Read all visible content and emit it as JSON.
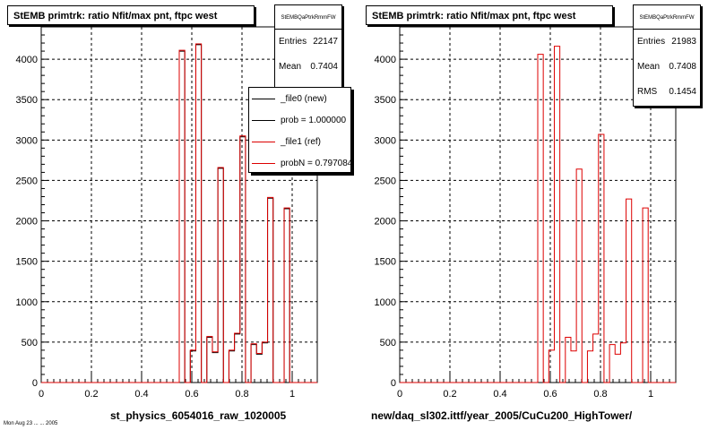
{
  "footer_text": "Mon Aug 23 ... ... 2005",
  "chart_data": [
    {
      "type": "bar",
      "title": "StEMB primtrk: ratio Nfit/max pnt, ftpc west",
      "xlabel": "st_physics_6054016_raw_1020005",
      "ylabel": "",
      "xlim": [
        0,
        1.1
      ],
      "ylim": [
        0,
        4400
      ],
      "xticks": [
        "0",
        "0.2",
        "0.4",
        "0.6",
        "0.8",
        "1"
      ],
      "yticks": [
        "0",
        "500",
        "1000",
        "1500",
        "2000",
        "2500",
        "3000",
        "3500",
        "4000"
      ],
      "grid": true,
      "bin_width": 0.022,
      "bin_lo": [
        0.55,
        0.572,
        0.594,
        0.616,
        0.638,
        0.66,
        0.682,
        0.704,
        0.726,
        0.748,
        0.77,
        0.792,
        0.814,
        0.836,
        0.858,
        0.88,
        0.902,
        0.924,
        0.946,
        0.968,
        0.99
      ],
      "series": [
        {
          "name": "_file0 (new)",
          "color": "#000000",
          "values": [
            4100,
            0,
            390,
            4180,
            0,
            560,
            370,
            2650,
            0,
            390,
            600,
            3040,
            0,
            470,
            350,
            490,
            2280,
            0,
            0,
            2150,
            0
          ]
        },
        {
          "name": "_file1 (ref)",
          "color": "#dd0000",
          "values": [
            4110,
            0,
            400,
            4190,
            0,
            570,
            380,
            2660,
            0,
            400,
            610,
            3050,
            0,
            480,
            360,
            500,
            2290,
            0,
            0,
            2160,
            0
          ]
        }
      ],
      "stats": {
        "name": "StEMBQaPtrkRmmFW",
        "rows": [
          {
            "label": "Entries",
            "value": "22147"
          },
          {
            "label": "Mean",
            "value": "0.7404"
          }
        ]
      },
      "legend": {
        "placement": "top-right",
        "entries": [
          {
            "label": "_file0 (new)",
            "color": "#000000"
          },
          {
            "label": "prob = 1.000000",
            "color": "#000000"
          },
          {
            "label": "_file1 (ref)",
            "color": "#dd0000"
          },
          {
            "label": "probN = 0.797084",
            "color": "#dd0000"
          }
        ]
      }
    },
    {
      "type": "bar",
      "title": "StEMB primtrk: ratio Nfit/max pnt, ftpc west",
      "xlabel": "new/daq_sl302.ittf/year_2005/CuCu200_HighTower/",
      "ylabel": "",
      "xlim": [
        0,
        1.1
      ],
      "ylim": [
        0,
        4400
      ],
      "xticks": [
        "0",
        "0.2",
        "0.4",
        "0.6",
        "0.8",
        "1"
      ],
      "yticks": [
        "0",
        "500",
        "1000",
        "1500",
        "2000",
        "2500",
        "3000",
        "3500",
        "4000"
      ],
      "grid": true,
      "bin_width": 0.022,
      "bin_lo": [
        0.55,
        0.572,
        0.594,
        0.616,
        0.638,
        0.66,
        0.682,
        0.704,
        0.726,
        0.748,
        0.77,
        0.792,
        0.814,
        0.836,
        0.858,
        0.88,
        0.902,
        0.924,
        0.946,
        0.968,
        0.99
      ],
      "series": [
        {
          "name": "",
          "color": "#dd0000",
          "values": [
            4060,
            0,
            400,
            4160,
            0,
            560,
            390,
            2640,
            0,
            390,
            600,
            3070,
            0,
            470,
            350,
            490,
            2270,
            0,
            0,
            2160,
            0
          ]
        }
      ],
      "stats": {
        "name": "StEMBQaPtrkRmmFW",
        "rows": [
          {
            "label": "Entries",
            "value": "21983"
          },
          {
            "label": "Mean",
            "value": "0.7408"
          },
          {
            "label": "RMS",
            "value": "0.1454"
          }
        ]
      }
    }
  ]
}
